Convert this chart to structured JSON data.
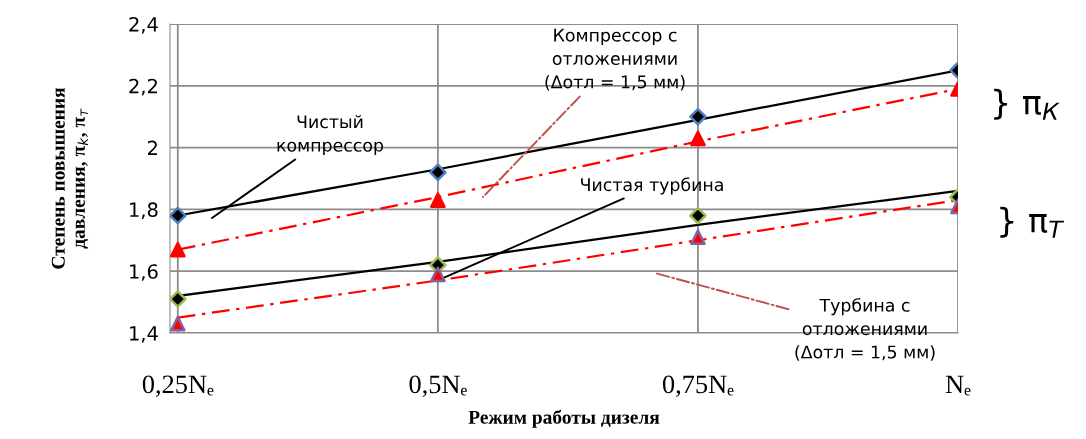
{
  "chart_data": {
    "type": "scatter",
    "xlabel": "Режим работы дизеля",
    "ylabel": "Степень повышения\nдавления, π$_{k}$, π$_{т}$",
    "categories": [
      "0,25Nₑ",
      "0,5Nₑ",
      "0,75Nₑ",
      "Nₑ"
    ],
    "ylim": [
      1.4,
      2.4
    ],
    "yticks": [
      {
        "value": 1.4,
        "label": "1,4"
      },
      {
        "value": 1.6,
        "label": "1,6"
      },
      {
        "value": 1.8,
        "label": "1,8"
      },
      2,
      {
        "value": 2.2,
        "label": "2,2"
      },
      {
        "value": 2.4,
        "label": "2,4"
      }
    ],
    "grid": true,
    "series": [
      {
        "marker": "diamond",
        "color": "#4f81bd",
        "values": [
          1.78,
          1.92,
          2.1,
          2.25
        ]
      },
      {
        "marker": "triangle",
        "color": "#ff0000",
        "values": [
          1.67,
          1.83,
          2.03,
          2.19
        ]
      },
      {
        "marker": "diamond",
        "color": "#9bbb59",
        "values": [
          1.51,
          1.62,
          1.78,
          1.84
        ]
      },
      {
        "marker": "triangle",
        "color": "#8064a2",
        "values": [
          1.43,
          1.59,
          1.71,
          1.81
        ]
      },
      {
        "type": "line",
        "marker": "none",
        "line_style": "solid",
        "color": "#000000",
        "values": [
          1.78,
          1.93,
          2.09,
          2.25
        ]
      },
      {
        "type": "line",
        "marker": "none",
        "line_style": "dashdot",
        "color": "#ff0000",
        "values": [
          1.67,
          1.84,
          2.02,
          2.19
        ]
      },
      {
        "type": "line",
        "marker": "none",
        "line_style": "solid",
        "color": "#000000",
        "values": [
          1.52,
          1.63,
          1.75,
          1.86
        ]
      },
      {
        "type": "line",
        "marker": "none",
        "line_style": "dashdot",
        "color": "#ff0000",
        "values": [
          1.45,
          1.57,
          1.7,
          1.83
        ]
      }
    ],
    "annotations": [
      "Чистый\nкомпрессор",
      "Компрессор с\nотложениями\n(Δотл = 1,5 мм)",
      {
        "text": "Чистая турбина",
        "x": "0,5Nₑ",
        "y": 1.57
      },
      "Турбина с\nотложениями\n(Δотл = 1,5 мм)",
      "} π$_{К}$",
      "} π$_{Т}$"
    ]
  }
}
